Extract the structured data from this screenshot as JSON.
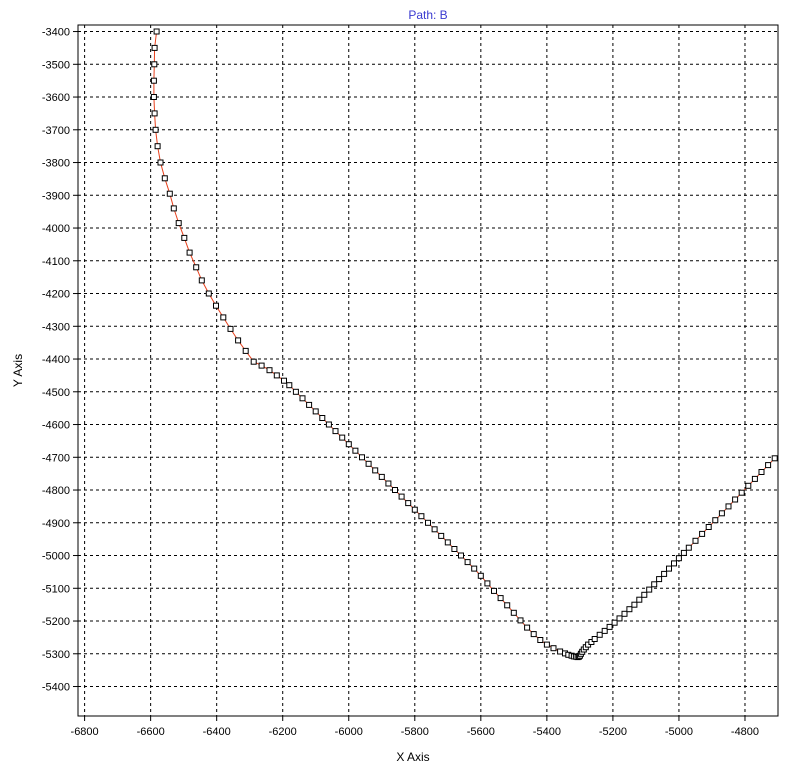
{
  "chart_data": {
    "type": "scatter",
    "title": "Path: B",
    "xlabel": "X Axis",
    "ylabel": "Y Axis",
    "xlim": [
      -6820,
      -4700
    ],
    "ylim": [
      -5490,
      -3380
    ],
    "x_ticks": [
      -6800,
      -6600,
      -6400,
      -6200,
      -6000,
      -5800,
      -5600,
      -5400,
      -5200,
      -5000,
      -4800
    ],
    "y_ticks": [
      -3400,
      -3500,
      -3600,
      -3700,
      -3800,
      -3900,
      -4000,
      -4100,
      -4200,
      -4300,
      -4400,
      -4500,
      -4600,
      -4700,
      -4800,
      -4900,
      -5000,
      -5100,
      -5200,
      -5300,
      -5400
    ],
    "x_tick_labels": [
      "-6800",
      "-6600",
      "-6400",
      "-6200",
      "-6000",
      "-5800",
      "-5600",
      "-5400",
      "-5200",
      "-5000",
      "-4800"
    ],
    "y_tick_labels": [
      "-3400",
      "-3500",
      "-3600",
      "-3700",
      "-3800",
      "-3900",
      "-4000",
      "-4100",
      "-4200",
      "-4300",
      "-4400",
      "-4500",
      "-4600",
      "-4700",
      "-4800",
      "-4900",
      "-5000",
      "-5100",
      "-5200",
      "-5300",
      "-5400"
    ],
    "grid": true,
    "line_color": "#e8401c",
    "title_color": "#3a3ad0",
    "marker": "square",
    "series": [
      {
        "x": [
          -6582,
          -6588,
          -6589,
          -6590,
          -6590,
          -6588,
          -6585,
          -6579,
          -6570,
          -6557,
          -6542,
          -6530,
          -6515,
          -6498,
          -6482,
          -6462,
          -6445,
          -6424,
          -6402,
          -6380,
          -6358,
          -6335,
          -6312,
          -6288,
          -6264,
          -6240,
          -6218,
          -6196,
          -6180,
          -6160,
          -6140,
          -6120,
          -6100,
          -6080,
          -6060,
          -6040,
          -6020,
          -6000,
          -5980,
          -5960,
          -5940,
          -5920,
          -5900,
          -5880,
          -5860,
          -5840,
          -5820,
          -5800,
          -5780,
          -5760,
          -5740,
          -5720,
          -5700,
          -5680,
          -5660,
          -5640,
          -5620,
          -5600,
          -5580,
          -5560,
          -5540,
          -5520,
          -5500,
          -5480,
          -5460,
          -5440,
          -5420,
          -5400,
          -5380,
          -5360,
          -5345,
          -5335,
          -5325,
          -5318,
          -5312,
          -5307,
          -5303,
          -5300,
          -5297,
          -5293,
          -5288,
          -5282,
          -5275,
          -5265,
          -5255,
          -5240,
          -5225,
          -5210,
          -5195,
          -5180,
          -5165,
          -5150,
          -5135,
          -5120,
          -5105,
          -5090,
          -5075,
          -5060,
          -5045,
          -5030,
          -5015,
          -5000,
          -4985,
          -4970,
          -4950,
          -4930,
          -4910,
          -4890,
          -4870,
          -4850,
          -4830,
          -4810,
          -4790,
          -4770,
          -4750,
          -4730,
          -4710
        ],
        "y": [
          -3400,
          -3450,
          -3500,
          -3550,
          -3600,
          -3650,
          -3700,
          -3750,
          -3800,
          -3848,
          -3895,
          -3940,
          -3985,
          -4030,
          -4075,
          -4120,
          -4160,
          -4200,
          -4237,
          -4273,
          -4308,
          -4343,
          -4375,
          -4408,
          -4420,
          -4434,
          -4450,
          -4466,
          -4480,
          -4500,
          -4520,
          -4540,
          -4560,
          -4580,
          -4600,
          -4620,
          -4640,
          -4660,
          -4680,
          -4700,
          -4720,
          -4740,
          -4760,
          -4780,
          -4800,
          -4820,
          -4840,
          -4860,
          -4880,
          -4900,
          -4920,
          -4940,
          -4960,
          -4980,
          -5000,
          -5020,
          -5040,
          -5062,
          -5085,
          -5108,
          -5130,
          -5152,
          -5175,
          -5198,
          -5220,
          -5240,
          -5258,
          -5272,
          -5283,
          -5293,
          -5299,
          -5303,
          -5306,
          -5308,
          -5309,
          -5310,
          -5309,
          -5306,
          -5300,
          -5294,
          -5287,
          -5280,
          -5272,
          -5264,
          -5255,
          -5242,
          -5230,
          -5218,
          -5205,
          -5192,
          -5178,
          -5164,
          -5150,
          -5135,
          -5120,
          -5104,
          -5088,
          -5072,
          -5056,
          -5040,
          -5024,
          -5008,
          -4992,
          -4976,
          -4955,
          -4934,
          -4913,
          -4892,
          -4871,
          -4850,
          -4829,
          -4808,
          -4787,
          -4766,
          -4745,
          -4724,
          -4703
        ]
      }
    ]
  }
}
